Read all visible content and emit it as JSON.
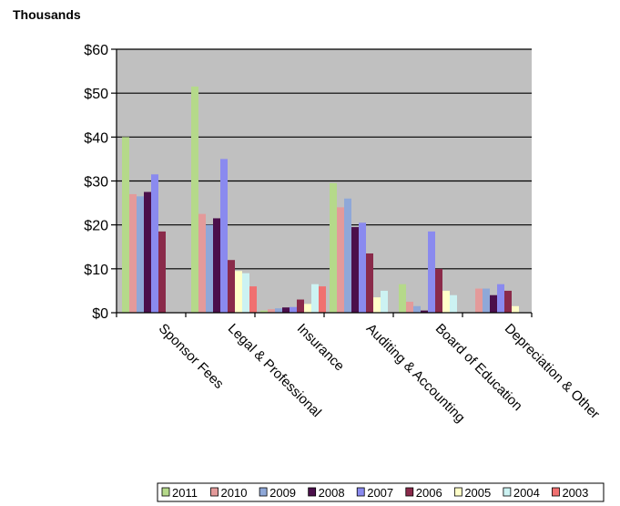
{
  "chart_data": {
    "type": "bar",
    "units_label": "Thousands",
    "categories": [
      "Sponsor Fees",
      "Legal & Professional",
      "Insurance",
      "Auditing & Accounting",
      "Board of Education",
      "Depreciation & Other"
    ],
    "y_tick_labels": [
      "$0",
      "$10",
      "$20",
      "$30",
      "$40",
      "$50",
      "$60"
    ],
    "ylim": [
      0,
      60
    ],
    "grid": true,
    "legend_position": "bottom",
    "plot_background": "#c0c0c0",
    "series": [
      {
        "name": "2011",
        "color": "#b5d98a",
        "values": [
          40,
          51.5,
          0.5,
          29.5,
          6.5,
          0
        ]
      },
      {
        "name": "2010",
        "color": "#e39a9a",
        "values": [
          27,
          22.5,
          0.8,
          24,
          2.5,
          5.5
        ]
      },
      {
        "name": "2009",
        "color": "#8fa8d8",
        "values": [
          26.5,
          20,
          1,
          26,
          1.5,
          5.5
        ]
      },
      {
        "name": "2008",
        "color": "#4b0f4b",
        "values": [
          27.5,
          21.5,
          1.2,
          19.5,
          0.5,
          4
        ]
      },
      {
        "name": "2007",
        "color": "#8a8aef",
        "values": [
          31.5,
          35,
          1.3,
          20.5,
          18.5,
          6.5
        ]
      },
      {
        "name": "2006",
        "color": "#8a2a4a",
        "values": [
          18.5,
          12,
          3,
          13.5,
          10,
          5
        ]
      },
      {
        "name": "2005",
        "color": "#ffffc8",
        "values": [
          0,
          9.5,
          2,
          3.5,
          5,
          1.5
        ]
      },
      {
        "name": "2004",
        "color": "#ccf2f2",
        "values": [
          0,
          9,
          6.5,
          5,
          4,
          0
        ]
      },
      {
        "name": "2003",
        "color": "#f07070",
        "values": [
          0,
          6,
          6,
          0,
          0,
          0
        ]
      }
    ]
  }
}
